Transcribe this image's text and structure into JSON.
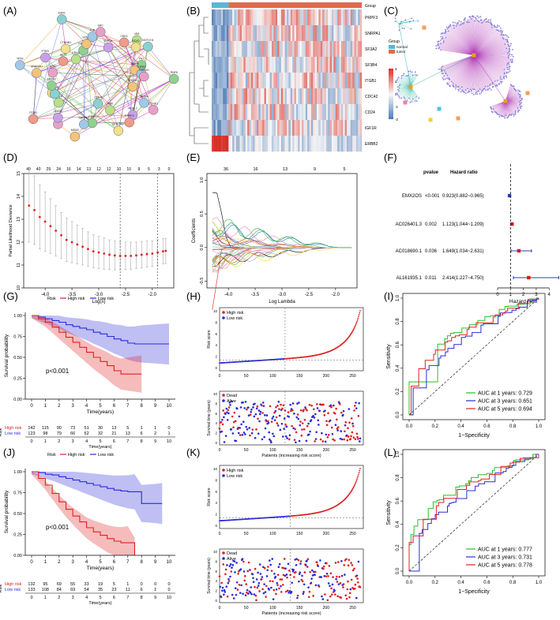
{
  "panels": {
    "A": {
      "label": "(A)",
      "network_nodes": [
        "RNF8",
        "BRCA1",
        "SF3B4",
        "CCND1",
        "RUBL2",
        "PRPF3",
        "NBN",
        "SYNCRIP",
        "CDK4",
        "FZD1",
        "MDM2",
        "SNRPA1",
        "EGFR",
        "CDC42",
        "ITGB1",
        "CD24",
        "SF3A2",
        "IGF1R",
        "ERBB2",
        "HNRNPU",
        "TP53",
        "MYC",
        "PTEN",
        "AKT1",
        "KRAS",
        "CTNNB1",
        "ESR1",
        "PIK3CA",
        "STAT3",
        "JUN",
        "SRC",
        "RHOA",
        "CDH1",
        "VIM",
        "SOX2",
        "NOTCH1",
        "FN1",
        "MMP9",
        "TGFB1",
        "GAPDH"
      ]
    },
    "B": {
      "label": "(B)",
      "genes": [
        "PRPF3",
        "SNRPA1",
        "SF3A2",
        "SF3B4",
        "ITGB1",
        "CDC42",
        "CD24",
        "IGF1R",
        "ERBB2"
      ],
      "group_title": "Group",
      "groups": [
        "normal",
        "tumor"
      ],
      "scale_ticks": [
        "2",
        "1",
        "0",
        "-1",
        "-2"
      ],
      "colors": {
        "normal": "#5bb6d6",
        "tumor": "#e06a4f",
        "high": "#d73027",
        "low": "#4575b4",
        "mid": "#f7f7f7"
      }
    },
    "C": {
      "label": "(C)"
    },
    "D": {
      "label": "(D)",
      "type": "line",
      "top_ticks": [
        "49",
        "40",
        "29",
        "24",
        "16",
        "14",
        "13",
        "12",
        "12",
        "10",
        "10",
        "9",
        "5",
        "3",
        "0"
      ],
      "x": [
        -4.3,
        -4.2,
        -4.1,
        -4.0,
        -3.9,
        -3.8,
        -3.7,
        -3.6,
        -3.5,
        -3.4,
        -3.3,
        -3.2,
        -3.1,
        -3.0,
        -2.9,
        -2.8,
        -2.7,
        -2.6,
        -2.5,
        -2.4,
        -2.3,
        -2.2,
        -2.1,
        -2.0,
        -1.9,
        -1.8,
        -1.75
      ],
      "y": [
        13.6,
        13.4,
        13.1,
        12.9,
        12.7,
        12.5,
        12.3,
        12.1,
        12.0,
        11.9,
        11.8,
        11.7,
        11.6,
        11.55,
        11.5,
        11.45,
        11.42,
        11.4,
        11.4,
        11.4,
        11.42,
        11.45,
        11.48,
        11.5,
        11.55,
        11.6,
        11.62
      ],
      "err": [
        1.6,
        1.5,
        1.4,
        1.3,
        1.2,
        1.1,
        1.0,
        0.95,
        0.9,
        0.85,
        0.8,
        0.75,
        0.72,
        0.7,
        0.68,
        0.65,
        0.63,
        0.62,
        0.6,
        0.6,
        0.58,
        0.58,
        0.57,
        0.56,
        0.56,
        0.55,
        0.55
      ],
      "vlines": [
        -2.6,
        -1.9
      ],
      "xlabel": "Log(λ)",
      "ylabel": "Partial Likelihood Deviance",
      "xlim": [
        -4.4,
        -1.6
      ],
      "ylim": [
        10,
        15
      ],
      "xticks": [
        "-4.0",
        "-3.5",
        "-3.0",
        "-2.5",
        "-2.0"
      ],
      "xtick_values": [
        -4.0,
        -3.5,
        -3.0,
        -2.5,
        -2.0
      ],
      "yticks": [
        "10",
        "11",
        "12",
        "13",
        "14",
        "15"
      ]
    },
    "E": {
      "label": "(E)",
      "type": "line",
      "top_ticks": [
        "36",
        "16",
        "13",
        "9",
        "5"
      ],
      "xlabel": "Log Lambda",
      "ylabel": "Coefficients",
      "xlim": [
        -4.4,
        -1.6
      ],
      "ylim": [
        -0.6,
        1.1
      ],
      "xticks": [
        "-4.0",
        "-3.5",
        "-3.0",
        "-2.5",
        "-2.0"
      ],
      "xtick_values": [
        -4.0,
        -3.5,
        -3.0,
        -2.5,
        -2.0
      ],
      "yticks": [
        "-0.5",
        "0.0",
        "0.5",
        "1.0"
      ],
      "ytick_values": [
        -0.5,
        0.0,
        0.5,
        1.0
      ],
      "series_count": 36
    },
    "F": {
      "label": "(F)",
      "type": "forest",
      "col_pvalue": "pvalue",
      "col_hr": "Hazard ratio",
      "rows": [
        {
          "gene": "EMX2OS",
          "p": "<0.001",
          "hr_text": "0.923(0.882~0.965)",
          "hr": 0.923,
          "lo": 0.882,
          "hi": 0.965,
          "color": "#2c3fb8"
        },
        {
          "gene": "AC026401.3",
          "p": "0.002",
          "hr_text": "1.123(1.044~1.209)",
          "hr": 1.123,
          "lo": 1.044,
          "hi": 1.209,
          "color": "#d7191c"
        },
        {
          "gene": "AC018690.1",
          "p": "0.036",
          "hr_text": "1.649(1.034~2.631)",
          "hr": 1.649,
          "lo": 1.034,
          "hi": 2.631,
          "color": "#d7191c"
        },
        {
          "gene": "AL161935.1",
          "p": "0.011",
          "hr_text": "2.414(1.227~4.750)",
          "hr": 2.414,
          "lo": 1.227,
          "hi": 4.75,
          "color": "#d7191c"
        }
      ],
      "xticks": [
        "0",
        "1",
        "2",
        "3",
        "4"
      ],
      "xlim": [
        0,
        4.6
      ],
      "xlabel": "Hazard ratio"
    },
    "G": {
      "label": "(G)",
      "type": "line",
      "legend_title": "Risk",
      "legend": [
        "High risk",
        "Low risk"
      ],
      "high": {
        "t": [
          0,
          0.5,
          1,
          1.5,
          2,
          2.5,
          3,
          3.5,
          4,
          4.5,
          5,
          5.5,
          6,
          6.5,
          7,
          7.5,
          8
        ],
        "s": [
          1.0,
          0.96,
          0.92,
          0.86,
          0.8,
          0.74,
          0.68,
          0.62,
          0.56,
          0.5,
          0.45,
          0.4,
          0.34,
          0.3,
          0.3,
          0.3,
          0.3
        ]
      },
      "low": {
        "t": [
          0,
          0.5,
          1,
          1.5,
          2,
          2.5,
          3,
          3.5,
          4,
          4.5,
          5,
          5.5,
          6,
          6.5,
          7,
          7.5,
          8,
          9,
          10
        ],
        "s": [
          1.0,
          0.98,
          0.96,
          0.94,
          0.92,
          0.89,
          0.87,
          0.85,
          0.83,
          0.8,
          0.78,
          0.75,
          0.72,
          0.7,
          0.67,
          0.66,
          0.66,
          0.66,
          0.66
        ]
      },
      "pvalue": "p<0.001",
      "xlabel": "Time(years)",
      "ylabel": "Survival probability",
      "xticks": [
        "0",
        "1",
        "2",
        "3",
        "4",
        "5",
        "6",
        "7",
        "8",
        "9",
        "10"
      ],
      "yticks": [
        "0.00",
        "0.25",
        "0.50",
        "0.75",
        "1.00"
      ],
      "risk_table_title": "Risk",
      "risk_high_label": "High risk",
      "risk_low_label": "Low risk",
      "risk_high": [
        "142",
        "115",
        "90",
        "73",
        "51",
        "30",
        "13",
        "5",
        "1",
        "1",
        "0"
      ],
      "risk_low": [
        "123",
        "98",
        "79",
        "66",
        "52",
        "32",
        "21",
        "13",
        "6",
        "2",
        "1"
      ],
      "risk_xlabel": "Time(years)"
    },
    "H": {
      "label": "(H)",
      "type": "scatter",
      "legend_top": [
        "High risk",
        "Low risk"
      ],
      "legend_bottom": [
        "Dead",
        "Alive"
      ],
      "top_ylabel": "Risk score",
      "bottom_ylabel": "Survival time (years)",
      "xlabel": "Patients (increasing risk score)",
      "top_yticks": [
        "0",
        "2",
        "4",
        "6",
        "8",
        "10"
      ],
      "bottom_yticks": [
        "0",
        "2",
        "4",
        "6",
        "8",
        "10"
      ],
      "xticks": [
        "0",
        "50",
        "100",
        "150",
        "200",
        "250"
      ],
      "n": 265,
      "cutoff": 123
    },
    "I": {
      "label": "(I)",
      "type": "line",
      "xlabel": "1−Specificity",
      "ylabel": "Sensitivity",
      "ticks": [
        "0.0",
        "0.2",
        "0.4",
        "0.6",
        "0.8",
        "1.0"
      ],
      "legend": [
        "AUC at 1 years: 0.729",
        "AUC at 3 years: 0.651",
        "AUC at 5 years: 0.694"
      ],
      "colors": [
        "#22c322",
        "#2b2bd9",
        "#e02020"
      ]
    },
    "J": {
      "label": "(J)",
      "type": "line",
      "legend_title": "Risk",
      "legend": [
        "High risk",
        "Low risk"
      ],
      "high": {
        "t": [
          0,
          0.5,
          1,
          1.5,
          2,
          2.5,
          3,
          3.5,
          4,
          4.5,
          5,
          5.5,
          6,
          6.5,
          7,
          7.5
        ],
        "s": [
          1.0,
          0.92,
          0.84,
          0.74,
          0.64,
          0.55,
          0.47,
          0.4,
          0.33,
          0.28,
          0.24,
          0.2,
          0.17,
          0.15,
          0.15,
          0.0
        ]
      },
      "low": {
        "t": [
          0,
          0.5,
          1,
          1.5,
          2,
          2.5,
          3,
          3.5,
          4,
          4.5,
          5,
          5.5,
          6,
          6.5,
          7,
          7.5,
          8,
          9,
          9.5
        ],
        "s": [
          1.0,
          0.99,
          0.97,
          0.96,
          0.94,
          0.92,
          0.9,
          0.88,
          0.86,
          0.84,
          0.82,
          0.8,
          0.78,
          0.77,
          0.76,
          0.76,
          0.62,
          0.62,
          0.62
        ]
      },
      "pvalue": "p<0.001",
      "xlabel": "Time(years)",
      "ylabel": "Survival probability",
      "xticks": [
        "0",
        "1",
        "2",
        "3",
        "4",
        "5",
        "6",
        "7",
        "8",
        "9",
        "10"
      ],
      "yticks": [
        "0.00",
        "0.25",
        "0.50",
        "0.75",
        "1.00"
      ],
      "risk_table_title": "Risk",
      "risk_high_label": "High risk",
      "risk_low_label": "Low risk",
      "risk_high": [
        "132",
        "95",
        "69",
        "55",
        "33",
        "19",
        "5",
        "1",
        "0",
        "0",
        "0"
      ],
      "risk_low": [
        "133",
        "108",
        "84",
        "69",
        "54",
        "35",
        "23",
        "11",
        "6",
        "1",
        "0"
      ],
      "risk_xlabel": "Time(years)"
    },
    "K": {
      "label": "(K)",
      "type": "scatter",
      "legend_top": [
        "High risk",
        "Low risk"
      ],
      "legend_bottom": [
        "Dead",
        "Alive"
      ],
      "top_ylabel": "Risk score",
      "bottom_ylabel": "Survival time (years)",
      "xlabel": "Patients (increasing risk score)",
      "top_yticks": [
        "0",
        "2",
        "4",
        "6",
        "8",
        "10"
      ],
      "bottom_yticks": [
        "0",
        "2",
        "4",
        "6",
        "8",
        "10"
      ],
      "xticks": [
        "0",
        "50",
        "100",
        "150",
        "200",
        "250"
      ],
      "n": 265,
      "cutoff": 133
    },
    "L": {
      "label": "(L)",
      "type": "line",
      "xlabel": "1−Specificity",
      "ylabel": "Sensitivity",
      "ticks": [
        "0.0",
        "0.2",
        "0.4",
        "0.6",
        "0.8",
        "1.0"
      ],
      "legend": [
        "AUC at 1 years: 0.777",
        "AUC at 3 years: 0.731",
        "AUC at 5 years: 0.778"
      ],
      "colors": [
        "#22c322",
        "#2b2bd9",
        "#e02020"
      ]
    }
  },
  "chart_data": [
    {
      "type": "line",
      "title": "(D)",
      "xlabel": "Log(λ)",
      "ylabel": "Partial Likelihood Deviance",
      "ylim": [
        10,
        15
      ]
    },
    {
      "type": "line",
      "title": "(E)",
      "xlabel": "Log Lambda",
      "ylabel": "Coefficients"
    },
    {
      "type": "table",
      "title": "(F)",
      "xlabel": "Hazard ratio",
      "categories": [
        "EMX2OS",
        "AC026401.3",
        "AC018690.1",
        "AL161935.1"
      ],
      "values": [
        0.923,
        1.123,
        1.649,
        2.414
      ]
    },
    {
      "type": "line",
      "title": "(G)",
      "xlabel": "Time(years)",
      "ylabel": "Survival probability",
      "series": [
        {
          "name": "High risk"
        },
        {
          "name": "Low risk"
        }
      ]
    },
    {
      "type": "scatter",
      "title": "(H)",
      "xlabel": "Patients (increasing risk score)",
      "ylabel": "Risk score"
    },
    {
      "type": "line",
      "title": "(I)",
      "xlabel": "1−Specificity",
      "ylabel": "Sensitivity",
      "series": [
        {
          "name": "AUC at 1 years",
          "values": [
            0.729
          ]
        },
        {
          "name": "AUC at 3 years",
          "values": [
            0.651
          ]
        },
        {
          "name": "AUC at 5 years",
          "values": [
            0.694
          ]
        }
      ]
    },
    {
      "type": "line",
      "title": "(J)",
      "xlabel": "Time(years)",
      "ylabel": "Survival probability",
      "series": [
        {
          "name": "High risk"
        },
        {
          "name": "Low risk"
        }
      ]
    },
    {
      "type": "scatter",
      "title": "(K)",
      "xlabel": "Patients (increasing risk score)",
      "ylabel": "Risk score"
    },
    {
      "type": "line",
      "title": "(L)",
      "xlabel": "1−Specificity",
      "ylabel": "Sensitivity",
      "series": [
        {
          "name": "AUC at 1 years",
          "values": [
            0.777
          ]
        },
        {
          "name": "AUC at 3 years",
          "values": [
            0.731
          ]
        },
        {
          "name": "AUC at 5 years",
          "values": [
            0.778
          ]
        }
      ]
    }
  ]
}
